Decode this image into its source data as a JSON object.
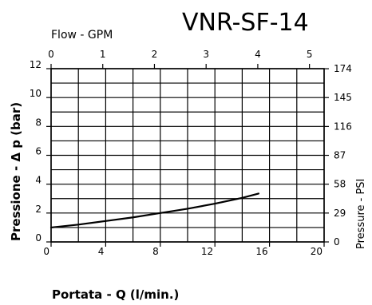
{
  "chart_data": {
    "type": "line",
    "title": "VNR-SF-14",
    "xlabel": "Portata - Q (l/min.)",
    "ylabel": "Pressione - Δ p (bar)",
    "x2label": "Flow - GPM",
    "y2label": "Pressure - PSI",
    "xlim": [
      0,
      20
    ],
    "ylim": [
      0,
      12
    ],
    "x_ticks": [
      0,
      4,
      8,
      12,
      16,
      20
    ],
    "y_ticks": [
      0,
      2,
      4,
      6,
      8,
      10,
      12
    ],
    "x2_ticks": [
      0,
      1,
      2,
      3,
      4,
      5
    ],
    "y2_ticks": [
      0,
      29,
      58,
      87,
      116,
      145,
      174
    ],
    "grid": true,
    "series": [
      {
        "x": [
          0,
          2,
          4,
          6,
          8,
          10,
          12,
          14,
          15.2
        ],
        "y": [
          1.0,
          1.2,
          1.45,
          1.7,
          2.0,
          2.3,
          2.65,
          3.05,
          3.35
        ]
      }
    ]
  }
}
